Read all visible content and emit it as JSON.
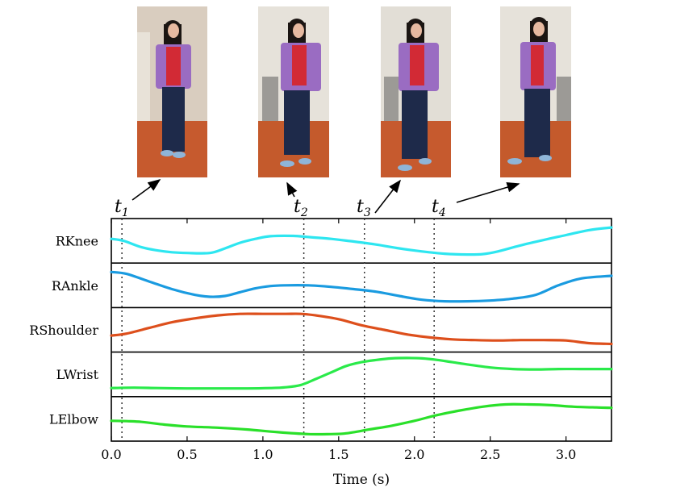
{
  "timeline": {
    "markers": [
      {
        "label": "t",
        "sub": "1",
        "time": 0.07
      },
      {
        "label": "t",
        "sub": "2",
        "time": 1.27
      },
      {
        "label": "t",
        "sub": "3",
        "time": 1.67
      },
      {
        "label": "t",
        "sub": "4",
        "time": 2.13
      }
    ]
  },
  "chart_data": {
    "type": "line",
    "xlabel": "Time (s)",
    "xlim": [
      0.0,
      3.3
    ],
    "xticks": [
      0.0,
      0.5,
      1.0,
      1.5,
      2.0,
      2.5,
      3.0
    ],
    "xtick_labels": [
      "0.0",
      "0.5",
      "1.0",
      "1.5",
      "2.0",
      "2.5",
      "3.0"
    ],
    "grid": false,
    "series": [
      {
        "name": "RKnee",
        "color": "#2ee6f0",
        "x": [
          0.0,
          0.08,
          0.2,
          0.3,
          0.4,
          0.5,
          0.65,
          0.75,
          0.85,
          0.95,
          1.05,
          1.2,
          1.3,
          1.45,
          1.6,
          1.75,
          1.9,
          2.05,
          2.2,
          2.35,
          2.45,
          2.55,
          2.7,
          2.85,
          3.0,
          3.15,
          3.3
        ],
        "y": [
          0.55,
          0.5,
          0.33,
          0.25,
          0.2,
          0.18,
          0.18,
          0.3,
          0.45,
          0.55,
          0.62,
          0.63,
          0.6,
          0.55,
          0.48,
          0.4,
          0.3,
          0.22,
          0.16,
          0.14,
          0.15,
          0.22,
          0.38,
          0.52,
          0.65,
          0.78,
          0.85
        ]
      },
      {
        "name": "RAnkle",
        "color": "#1a9be0",
        "x": [
          0.0,
          0.1,
          0.25,
          0.4,
          0.55,
          0.65,
          0.75,
          0.85,
          0.95,
          1.05,
          1.15,
          1.3,
          1.45,
          1.6,
          1.75,
          1.9,
          2.05,
          2.2,
          2.35,
          2.5,
          2.65,
          2.8,
          2.95,
          3.1,
          3.3
        ],
        "y": [
          0.85,
          0.8,
          0.6,
          0.4,
          0.25,
          0.2,
          0.22,
          0.32,
          0.42,
          0.48,
          0.5,
          0.5,
          0.46,
          0.4,
          0.33,
          0.22,
          0.12,
          0.08,
          0.08,
          0.1,
          0.15,
          0.25,
          0.5,
          0.68,
          0.75
        ]
      },
      {
        "name": "RShoulder",
        "color": "#dd4f1c",
        "x": [
          0.0,
          0.1,
          0.25,
          0.4,
          0.55,
          0.7,
          0.85,
          1.0,
          1.15,
          1.25,
          1.35,
          1.5,
          1.65,
          1.8,
          1.95,
          2.1,
          2.25,
          2.4,
          2.55,
          2.7,
          2.85,
          3.0,
          3.15,
          3.3
        ],
        "y": [
          0.35,
          0.4,
          0.55,
          0.7,
          0.8,
          0.88,
          0.92,
          0.92,
          0.92,
          0.92,
          0.88,
          0.78,
          0.62,
          0.5,
          0.38,
          0.3,
          0.25,
          0.23,
          0.22,
          0.23,
          0.23,
          0.22,
          0.15,
          0.13
        ]
      },
      {
        "name": "LWrist",
        "color": "#2aea4a",
        "x": [
          0.0,
          0.15,
          0.3,
          0.5,
          0.7,
          0.9,
          1.05,
          1.15,
          1.25,
          1.35,
          1.45,
          1.55,
          1.65,
          1.75,
          1.85,
          1.95,
          2.05,
          2.15,
          2.25,
          2.35,
          2.5,
          2.65,
          2.8,
          2.95,
          3.1,
          3.3
        ],
        "y": [
          0.14,
          0.15,
          0.14,
          0.13,
          0.13,
          0.13,
          0.14,
          0.16,
          0.22,
          0.38,
          0.55,
          0.72,
          0.82,
          0.88,
          0.92,
          0.93,
          0.92,
          0.88,
          0.82,
          0.76,
          0.68,
          0.64,
          0.63,
          0.64,
          0.64,
          0.64
        ]
      },
      {
        "name": "LElbow",
        "color": "#2ae02a",
        "x": [
          0.0,
          0.1,
          0.2,
          0.35,
          0.5,
          0.7,
          0.9,
          1.1,
          1.3,
          1.45,
          1.55,
          1.7,
          1.85,
          2.0,
          2.15,
          2.3,
          2.45,
          2.6,
          2.75,
          2.9,
          3.05,
          3.2,
          3.3
        ],
        "y": [
          0.45,
          0.44,
          0.42,
          0.35,
          0.3,
          0.27,
          0.22,
          0.15,
          0.1,
          0.1,
          0.12,
          0.22,
          0.32,
          0.45,
          0.6,
          0.72,
          0.82,
          0.88,
          0.88,
          0.86,
          0.82,
          0.8,
          0.79
        ]
      }
    ]
  }
}
